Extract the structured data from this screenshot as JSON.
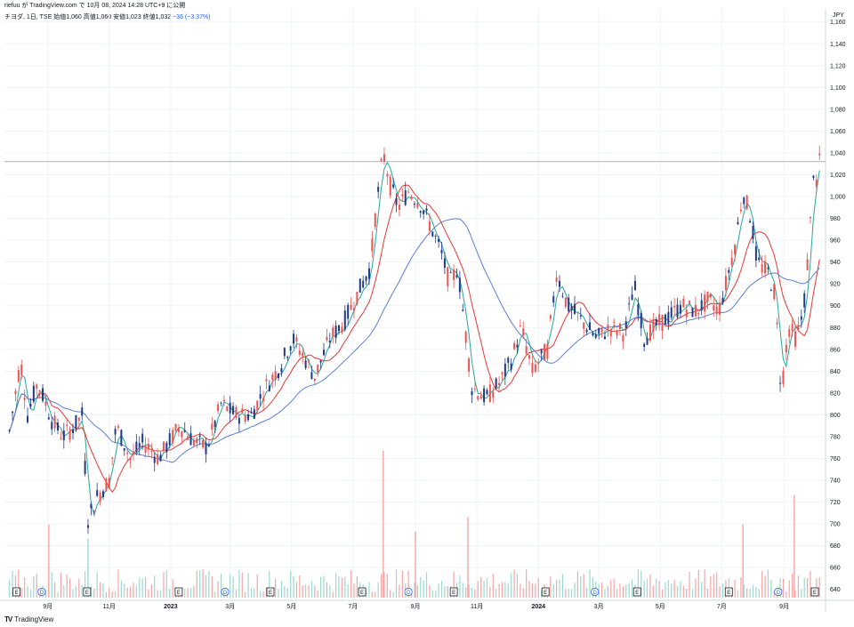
{
  "header": {
    "byline": "riefuu が TradingView.com で 10月 08, 2024 14:28 UTC+9 に公開",
    "symbol_line": "チヨダ, 1日, TSE  始値1,060  高値1,060  安値1,023  終値1,032",
    "change": "−36 (−3.37%)",
    "currency": "JPY"
  },
  "footer": {
    "logo": "TV",
    "brand": "TradingView"
  },
  "colors": {
    "up": "#ef5350",
    "down": "#1e3a8a",
    "ma_short": "#26a69a",
    "ma_mid": "#e53935",
    "ma_long": "#5b7fd6",
    "vol_up": "#f5a6a6",
    "vol_down": "#9fd9d0",
    "price_line": "#9598a1",
    "grid": "#f0f3fa"
  },
  "chart_data": {
    "type": "candlestick",
    "title": "",
    "ylabel": "JPY",
    "ylim": [
      630,
      1172
    ],
    "yticks": [
      640,
      660,
      680,
      700,
      720,
      740,
      760,
      780,
      800,
      820,
      840,
      860,
      880,
      900,
      920,
      940,
      960,
      980,
      1000,
      1020,
      1040,
      1060,
      1080,
      1100,
      1120,
      1140,
      1160
    ],
    "last_close": 1032,
    "x_months": [
      "9月",
      "11月",
      "2023",
      "3月",
      "5月",
      "7月",
      "9月",
      "11月",
      "2024",
      "3月",
      "5月",
      "7月",
      "9月"
    ],
    "series_close": [
      {
        "date": "2022-07-25",
        "close": 785
      },
      {
        "date": "2022-08-05",
        "close": 850
      },
      {
        "date": "2022-08-12",
        "close": 800
      },
      {
        "date": "2022-08-22",
        "close": 830
      },
      {
        "date": "2022-09-05",
        "close": 795
      },
      {
        "date": "2022-09-16",
        "close": 780
      },
      {
        "date": "2022-09-28",
        "close": 790
      },
      {
        "date": "2022-10-05",
        "close": 800
      },
      {
        "date": "2022-10-11",
        "close": 705
      },
      {
        "date": "2022-10-20",
        "close": 725
      },
      {
        "date": "2022-11-01",
        "close": 740
      },
      {
        "date": "2022-11-08",
        "close": 790
      },
      {
        "date": "2022-11-22",
        "close": 760
      },
      {
        "date": "2022-12-05",
        "close": 775
      },
      {
        "date": "2022-12-20",
        "close": 760
      },
      {
        "date": "2023-01-10",
        "close": 790
      },
      {
        "date": "2023-01-25",
        "close": 775
      },
      {
        "date": "2023-02-06",
        "close": 770
      },
      {
        "date": "2023-02-20",
        "close": 810
      },
      {
        "date": "2023-03-06",
        "close": 800
      },
      {
        "date": "2023-03-22",
        "close": 800
      },
      {
        "date": "2023-04-05",
        "close": 825
      },
      {
        "date": "2023-04-20",
        "close": 845
      },
      {
        "date": "2023-05-02",
        "close": 870
      },
      {
        "date": "2023-05-12",
        "close": 855
      },
      {
        "date": "2023-05-24",
        "close": 835
      },
      {
        "date": "2023-06-08",
        "close": 870
      },
      {
        "date": "2023-06-22",
        "close": 885
      },
      {
        "date": "2023-07-05",
        "close": 910
      },
      {
        "date": "2023-07-18",
        "close": 935
      },
      {
        "date": "2023-07-24",
        "close": 990
      },
      {
        "date": "2023-07-31",
        "close": 1040
      },
      {
        "date": "2023-08-07",
        "close": 1010
      },
      {
        "date": "2023-08-15",
        "close": 990
      },
      {
        "date": "2023-08-25",
        "close": 1005
      },
      {
        "date": "2023-09-05",
        "close": 995
      },
      {
        "date": "2023-09-15",
        "close": 975
      },
      {
        "date": "2023-09-26",
        "close": 950
      },
      {
        "date": "2023-10-05",
        "close": 920
      },
      {
        "date": "2023-10-13",
        "close": 935
      },
      {
        "date": "2023-10-20",
        "close": 880
      },
      {
        "date": "2023-10-27",
        "close": 825
      },
      {
        "date": "2023-11-10",
        "close": 815
      },
      {
        "date": "2023-11-24",
        "close": 830
      },
      {
        "date": "2023-12-05",
        "close": 850
      },
      {
        "date": "2023-12-15",
        "close": 880
      },
      {
        "date": "2023-12-26",
        "close": 840
      },
      {
        "date": "2024-01-10",
        "close": 860
      },
      {
        "date": "2024-01-19",
        "close": 930
      },
      {
        "date": "2024-01-30",
        "close": 900
      },
      {
        "date": "2024-02-14",
        "close": 885
      },
      {
        "date": "2024-02-28",
        "close": 870
      },
      {
        "date": "2024-03-12",
        "close": 880
      },
      {
        "date": "2024-03-27",
        "close": 875
      },
      {
        "date": "2024-04-05",
        "close": 920
      },
      {
        "date": "2024-04-15",
        "close": 870
      },
      {
        "date": "2024-04-25",
        "close": 880
      },
      {
        "date": "2024-05-10",
        "close": 890
      },
      {
        "date": "2024-05-22",
        "close": 900
      },
      {
        "date": "2024-06-05",
        "close": 895
      },
      {
        "date": "2024-06-18",
        "close": 905
      },
      {
        "date": "2024-06-28",
        "close": 895
      },
      {
        "date": "2024-07-05",
        "close": 920
      },
      {
        "date": "2024-07-15",
        "close": 960
      },
      {
        "date": "2024-07-22",
        "close": 1005
      },
      {
        "date": "2024-07-30",
        "close": 980
      },
      {
        "date": "2024-08-05",
        "close": 940
      },
      {
        "date": "2024-08-16",
        "close": 930
      },
      {
        "date": "2024-08-23",
        "close": 910
      },
      {
        "date": "2024-08-29",
        "close": 820
      },
      {
        "date": "2024-09-05",
        "close": 880
      },
      {
        "date": "2024-09-13",
        "close": 870
      },
      {
        "date": "2024-09-20",
        "close": 895
      },
      {
        "date": "2024-09-26",
        "close": 960
      },
      {
        "date": "2024-10-01",
        "close": 1040
      },
      {
        "date": "2024-10-04",
        "close": 990
      },
      {
        "date": "2024-10-07",
        "close": 1060
      },
      {
        "date": "2024-10-08",
        "close": 1032
      }
    ],
    "volume_spikes": [
      {
        "date": "2022-09-02",
        "value": 0.5,
        "up": true
      },
      {
        "date": "2022-10-11",
        "value": 0.4,
        "up": false
      },
      {
        "date": "2023-07-31",
        "value": 1.0,
        "up": true
      },
      {
        "date": "2023-09-01",
        "value": 0.45,
        "up": true
      },
      {
        "date": "2023-10-23",
        "value": 0.55,
        "up": true
      },
      {
        "date": "2024-07-22",
        "value": 0.5,
        "up": true
      },
      {
        "date": "2024-09-11",
        "value": 0.7,
        "up": true
      }
    ],
    "events": [
      {
        "date": "2022-08-01",
        "kind": "E"
      },
      {
        "date": "2022-08-26",
        "kind": "D"
      },
      {
        "date": "2022-10-10",
        "kind": "E"
      },
      {
        "date": "2023-01-09",
        "kind": "E"
      },
      {
        "date": "2023-02-24",
        "kind": "D"
      },
      {
        "date": "2023-04-10",
        "kind": "E"
      },
      {
        "date": "2023-07-10",
        "kind": "E"
      },
      {
        "date": "2023-08-25",
        "kind": "D"
      },
      {
        "date": "2023-10-09",
        "kind": "E"
      },
      {
        "date": "2024-01-08",
        "kind": "E"
      },
      {
        "date": "2024-02-26",
        "kind": "D"
      },
      {
        "date": "2024-04-08",
        "kind": "E"
      },
      {
        "date": "2024-07-08",
        "kind": "E"
      },
      {
        "date": "2024-08-26",
        "kind": "D"
      },
      {
        "date": "2024-10-10",
        "kind": "E"
      }
    ]
  }
}
